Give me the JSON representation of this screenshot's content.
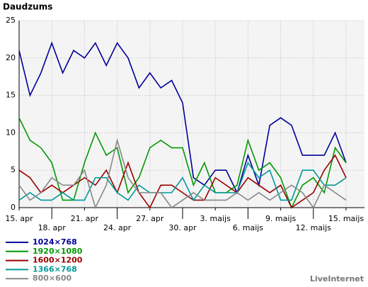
{
  "chart_data": {
    "type": "line",
    "title": "Daudzums",
    "categories": [
      "15. apr",
      null,
      null,
      "18. apr",
      null,
      null,
      "21. apr",
      null,
      null,
      "24. apr",
      null,
      null,
      "27. apr",
      null,
      null,
      "30. apr",
      null,
      null,
      "3. maijs",
      null,
      null,
      "6. maijs",
      null,
      null,
      "9. maijs",
      null,
      null,
      "12. maijs",
      null,
      null,
      "15. maijs"
    ],
    "series": [
      {
        "name": "1024×768",
        "color": "#000099",
        "values": [
          21,
          15,
          18,
          22,
          18,
          21,
          20,
          22,
          19,
          22,
          20,
          16,
          18,
          16,
          17,
          14,
          4,
          3,
          5,
          5,
          2,
          7,
          3,
          11,
          12,
          11,
          7,
          7,
          7,
          10,
          6
        ]
      },
      {
        "name": "1920×1080",
        "color": "#009900",
        "values": [
          12,
          9,
          8,
          6,
          1,
          1,
          6,
          10,
          7,
          8,
          2,
          4,
          8,
          9,
          8,
          8,
          3,
          6,
          2,
          2,
          3,
          9,
          5,
          6,
          4,
          0,
          3,
          4,
          2,
          8,
          6
        ]
      },
      {
        "name": "1600×1200",
        "color": "#990000",
        "values": [
          5,
          4,
          2,
          3,
          2,
          3,
          4,
          3,
          5,
          2,
          6,
          2,
          0,
          3,
          3,
          2,
          1,
          1,
          4,
          3,
          2,
          4,
          3,
          2,
          3,
          0,
          1,
          2,
          5,
          7,
          4
        ]
      },
      {
        "name": "1366×768",
        "color": "#009999",
        "values": [
          1,
          2,
          1,
          1,
          2,
          1,
          1,
          4,
          4,
          2,
          1,
          3,
          2,
          2,
          2,
          4,
          1,
          3,
          2,
          2,
          2,
          6,
          4,
          5,
          1,
          1,
          5,
          5,
          3,
          3,
          4
        ]
      },
      {
        "name": "800×600",
        "color": "#888888",
        "values": [
          3,
          1,
          2,
          4,
          3,
          3,
          5,
          0,
          3,
          9,
          4,
          2,
          2,
          2,
          0,
          1,
          2,
          1,
          1,
          1,
          2,
          1,
          2,
          1,
          2,
          3,
          2,
          0,
          3,
          2,
          1
        ]
      }
    ],
    "ylim": [
      0,
      25
    ],
    "yticks": [
      0,
      5,
      10,
      15,
      20,
      25
    ],
    "grid": true,
    "source": "LiveInternet"
  }
}
